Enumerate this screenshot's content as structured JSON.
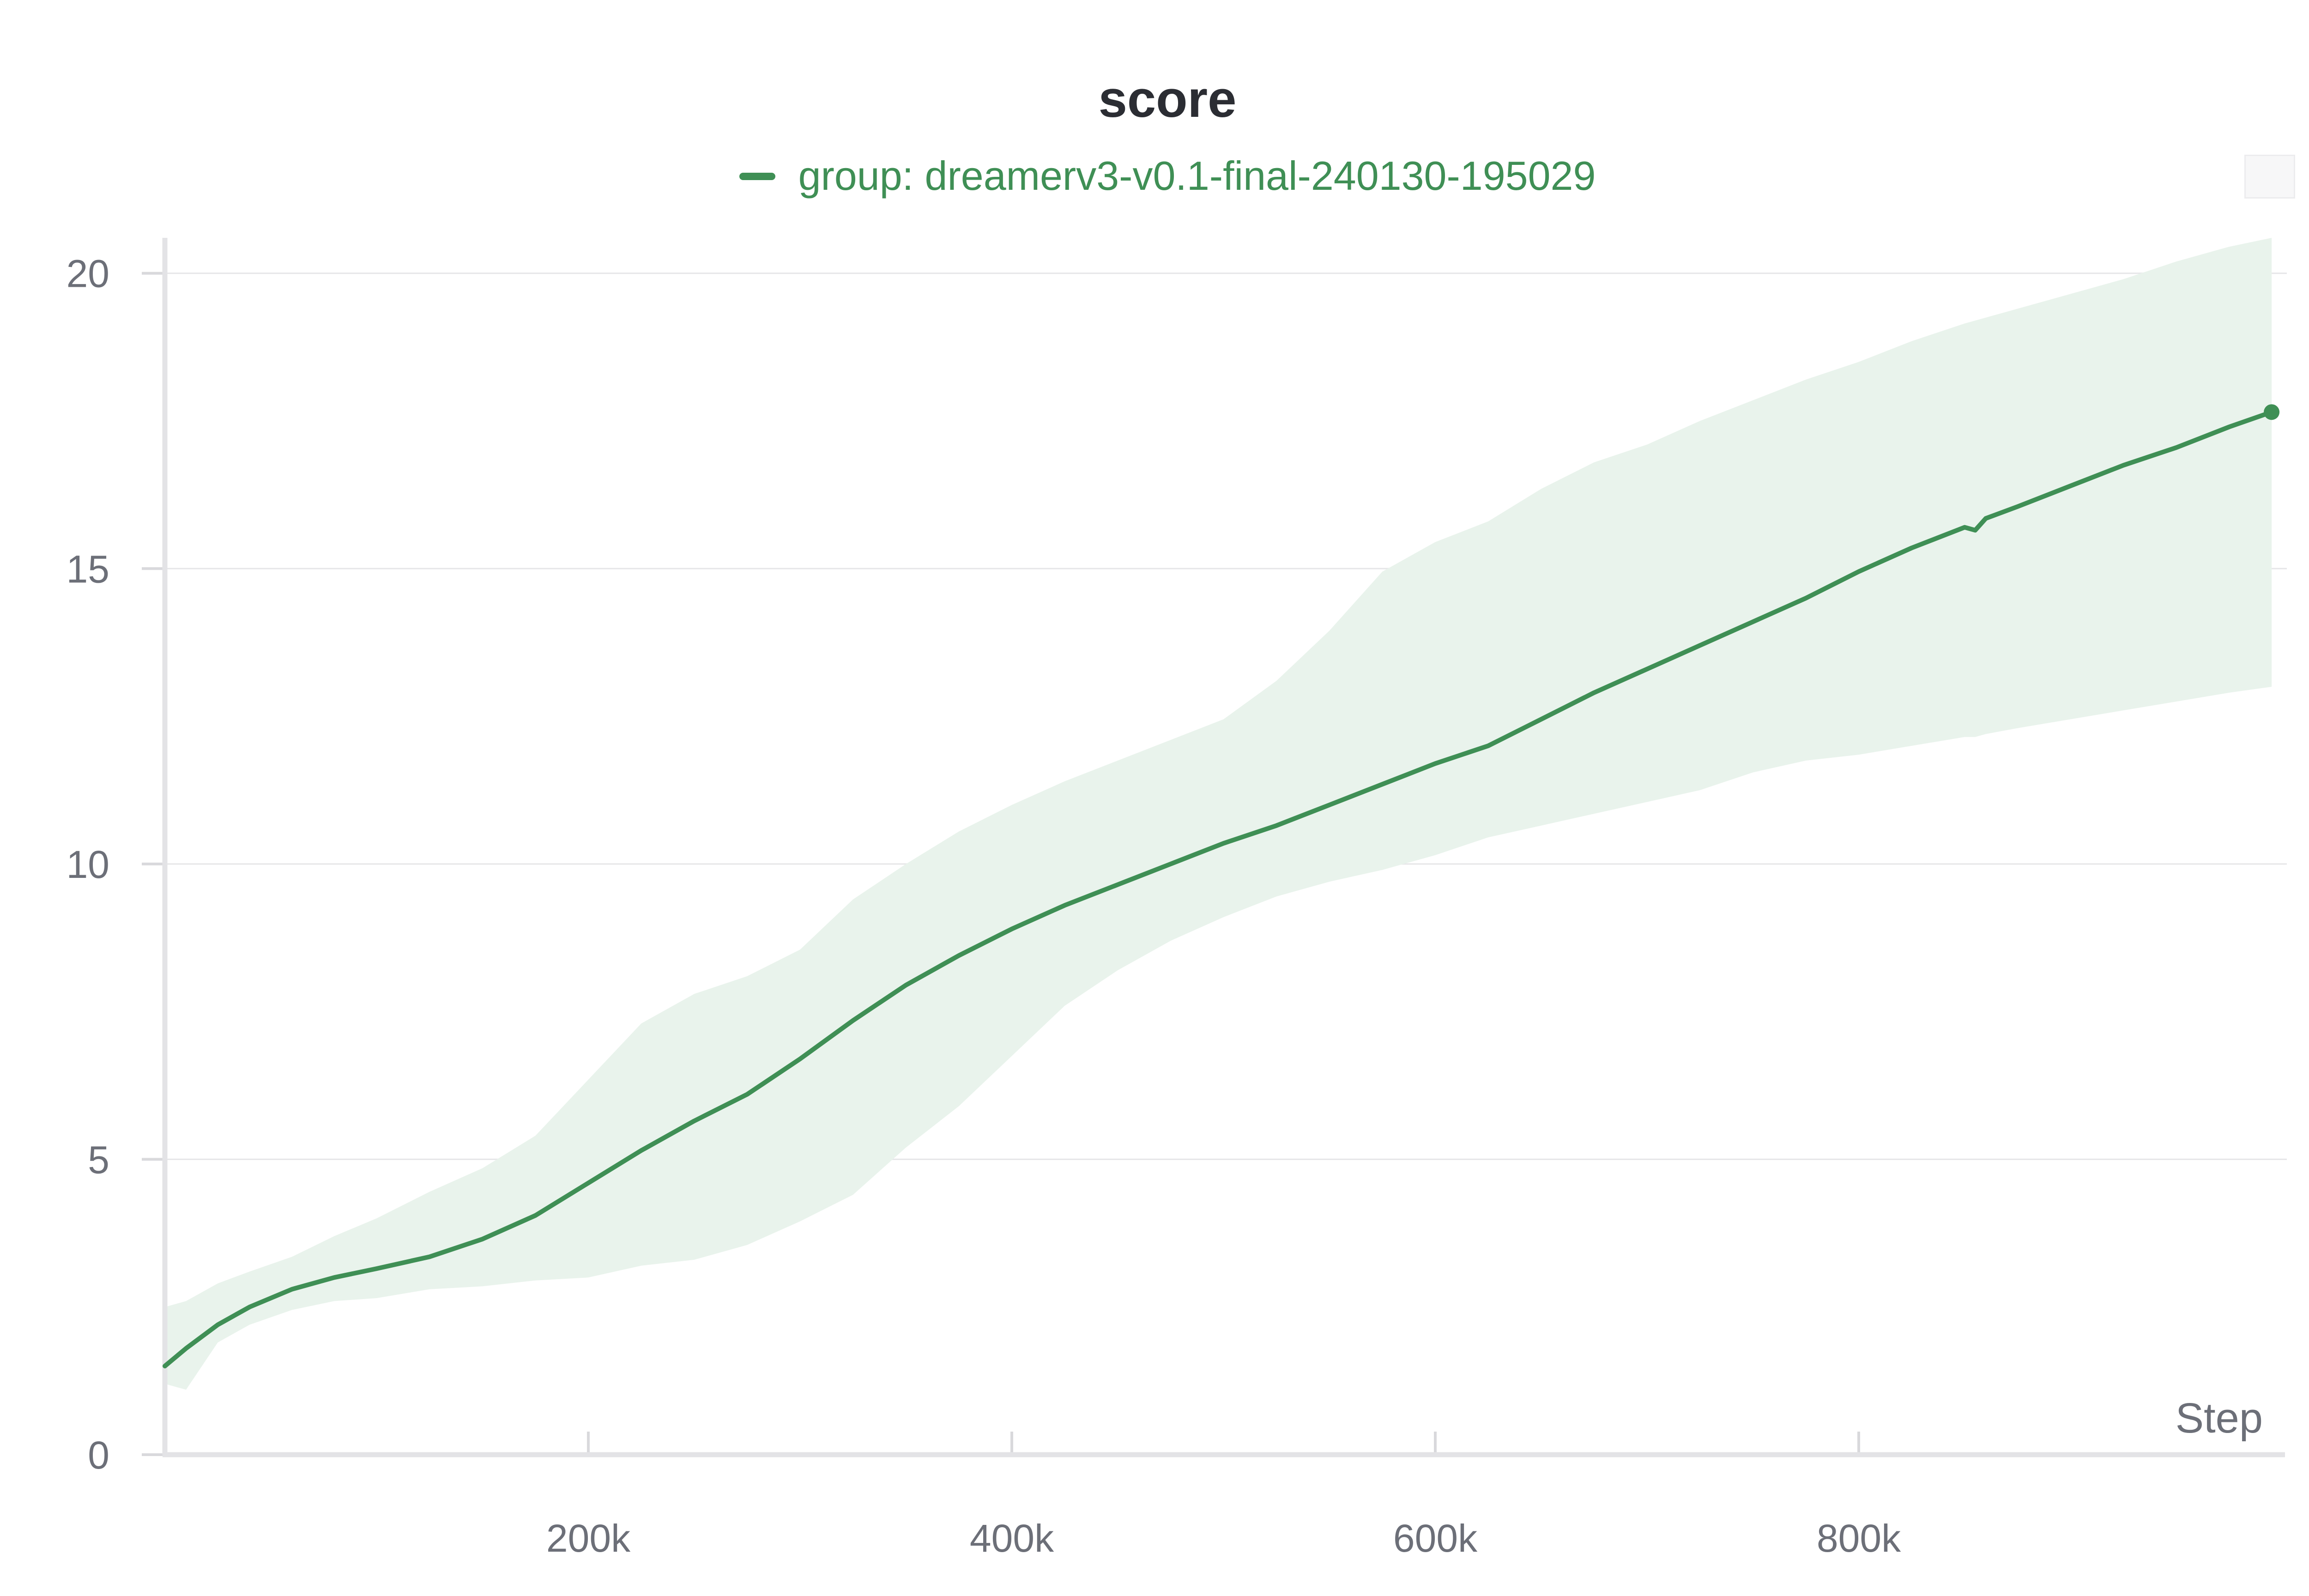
{
  "chart_data": {
    "type": "line",
    "title": "score",
    "xlabel": "Step",
    "ylabel": "",
    "xlim": [
      0,
      1000000
    ],
    "ylim": [
      0,
      20.6
    ],
    "x_ticks": [
      200000,
      400000,
      600000,
      800000
    ],
    "x_tick_labels": [
      "200k",
      "400k",
      "600k",
      "800k"
    ],
    "y_ticks": [
      0,
      5,
      10,
      15,
      20
    ],
    "y_tick_labels": [
      "0",
      "5",
      "10",
      "15",
      "20"
    ],
    "grid": "horizontal",
    "legend_placement": "top-center",
    "series": [
      {
        "name": "group: dreamerv3-v0.1-final-240130-195029",
        "color": "#3f8f55",
        "band_color": "#e9f3ec",
        "x": [
          0,
          10000,
          25000,
          40000,
          60000,
          80000,
          100000,
          125000,
          150000,
          175000,
          200000,
          225000,
          250000,
          275000,
          300000,
          325000,
          350000,
          375000,
          400000,
          425000,
          450000,
          475000,
          500000,
          525000,
          550000,
          575000,
          600000,
          625000,
          650000,
          675000,
          700000,
          725000,
          750000,
          775000,
          800000,
          825000,
          850000,
          855000,
          860000,
          875000,
          900000,
          925000,
          950000,
          975000,
          995000
        ],
        "y": [
          1.5,
          1.8,
          2.2,
          2.5,
          2.8,
          3.0,
          3.15,
          3.35,
          3.65,
          4.05,
          4.6,
          5.15,
          5.65,
          6.1,
          6.7,
          7.35,
          7.95,
          8.45,
          8.9,
          9.3,
          9.65,
          10.0,
          10.35,
          10.65,
          11.0,
          11.35,
          11.7,
          12.0,
          12.45,
          12.9,
          13.3,
          13.7,
          14.1,
          14.5,
          14.95,
          15.35,
          15.7,
          15.65,
          15.85,
          16.05,
          16.4,
          16.75,
          17.05,
          17.4,
          17.65
        ],
        "upper": [
          2.5,
          2.6,
          2.9,
          3.1,
          3.35,
          3.7,
          4.0,
          4.45,
          4.85,
          5.4,
          6.35,
          7.3,
          7.8,
          8.1,
          8.55,
          9.4,
          10.0,
          10.55,
          11.0,
          11.4,
          11.75,
          12.1,
          12.45,
          13.1,
          13.95,
          14.95,
          15.45,
          15.8,
          16.35,
          16.8,
          17.1,
          17.5,
          17.85,
          18.2,
          18.5,
          18.85,
          19.15,
          19.2,
          19.25,
          19.4,
          19.65,
          19.9,
          20.2,
          20.45,
          20.6
        ],
        "lower": [
          1.2,
          1.1,
          1.9,
          2.2,
          2.45,
          2.6,
          2.65,
          2.8,
          2.85,
          2.95,
          3.0,
          3.2,
          3.3,
          3.55,
          3.95,
          4.4,
          5.2,
          5.9,
          6.75,
          7.6,
          8.2,
          8.7,
          9.1,
          9.45,
          9.7,
          9.9,
          10.15,
          10.45,
          10.65,
          10.85,
          11.05,
          11.25,
          11.55,
          11.75,
          11.85,
          12.0,
          12.15,
          12.15,
          12.2,
          12.3,
          12.45,
          12.6,
          12.75,
          12.9,
          13.0
        ]
      }
    ]
  }
}
